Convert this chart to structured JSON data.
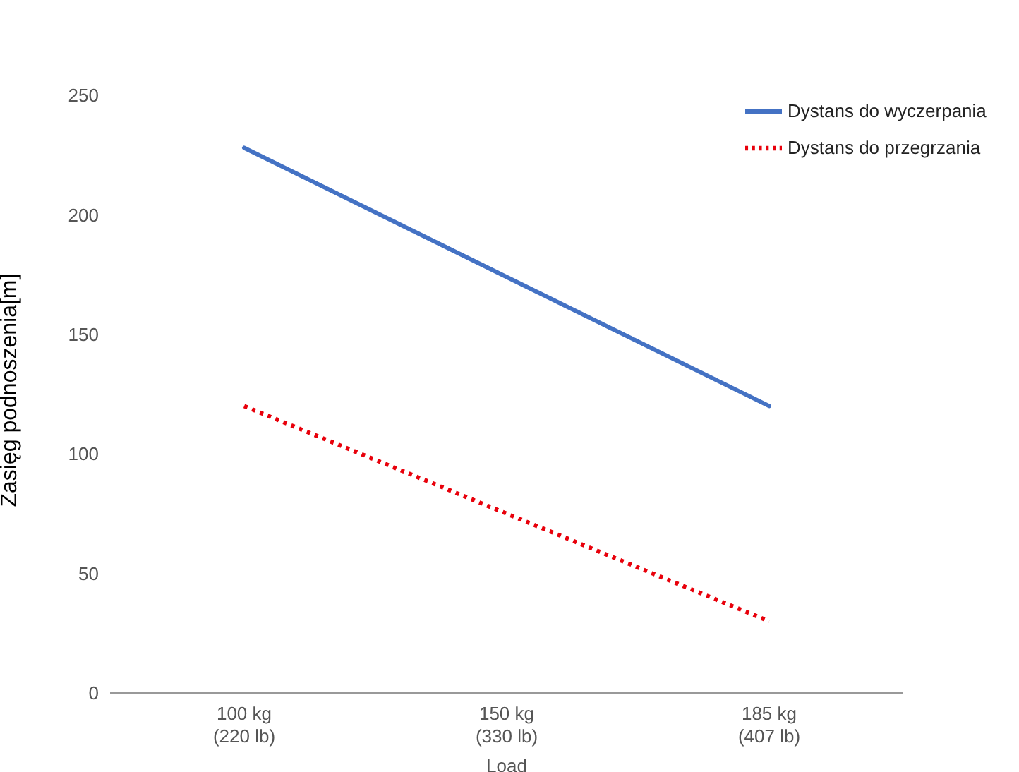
{
  "chart_data": {
    "type": "line",
    "ylabel": "Zasięg podnoszenia[m]",
    "xlabel": "Load",
    "categories": [
      "100 kg\n(220 lb)",
      "150 kg\n(330 lb)",
      "185 kg\n(407 lb)"
    ],
    "series": [
      {
        "name": "Dystans do wyczerpania",
        "color": "#4472c4",
        "values": [
          228,
          174,
          120
        ],
        "line_style": "solid"
      },
      {
        "name": "Dystans do przegrzania",
        "color": "#e8000b",
        "values": [
          120,
          75,
          30
        ],
        "line_style": "dotted"
      }
    ],
    "ylim": [
      0,
      250
    ],
    "yticks": [
      0,
      50,
      100,
      150,
      200,
      250
    ],
    "grid": false,
    "legend": "top right",
    "marker": "none"
  }
}
